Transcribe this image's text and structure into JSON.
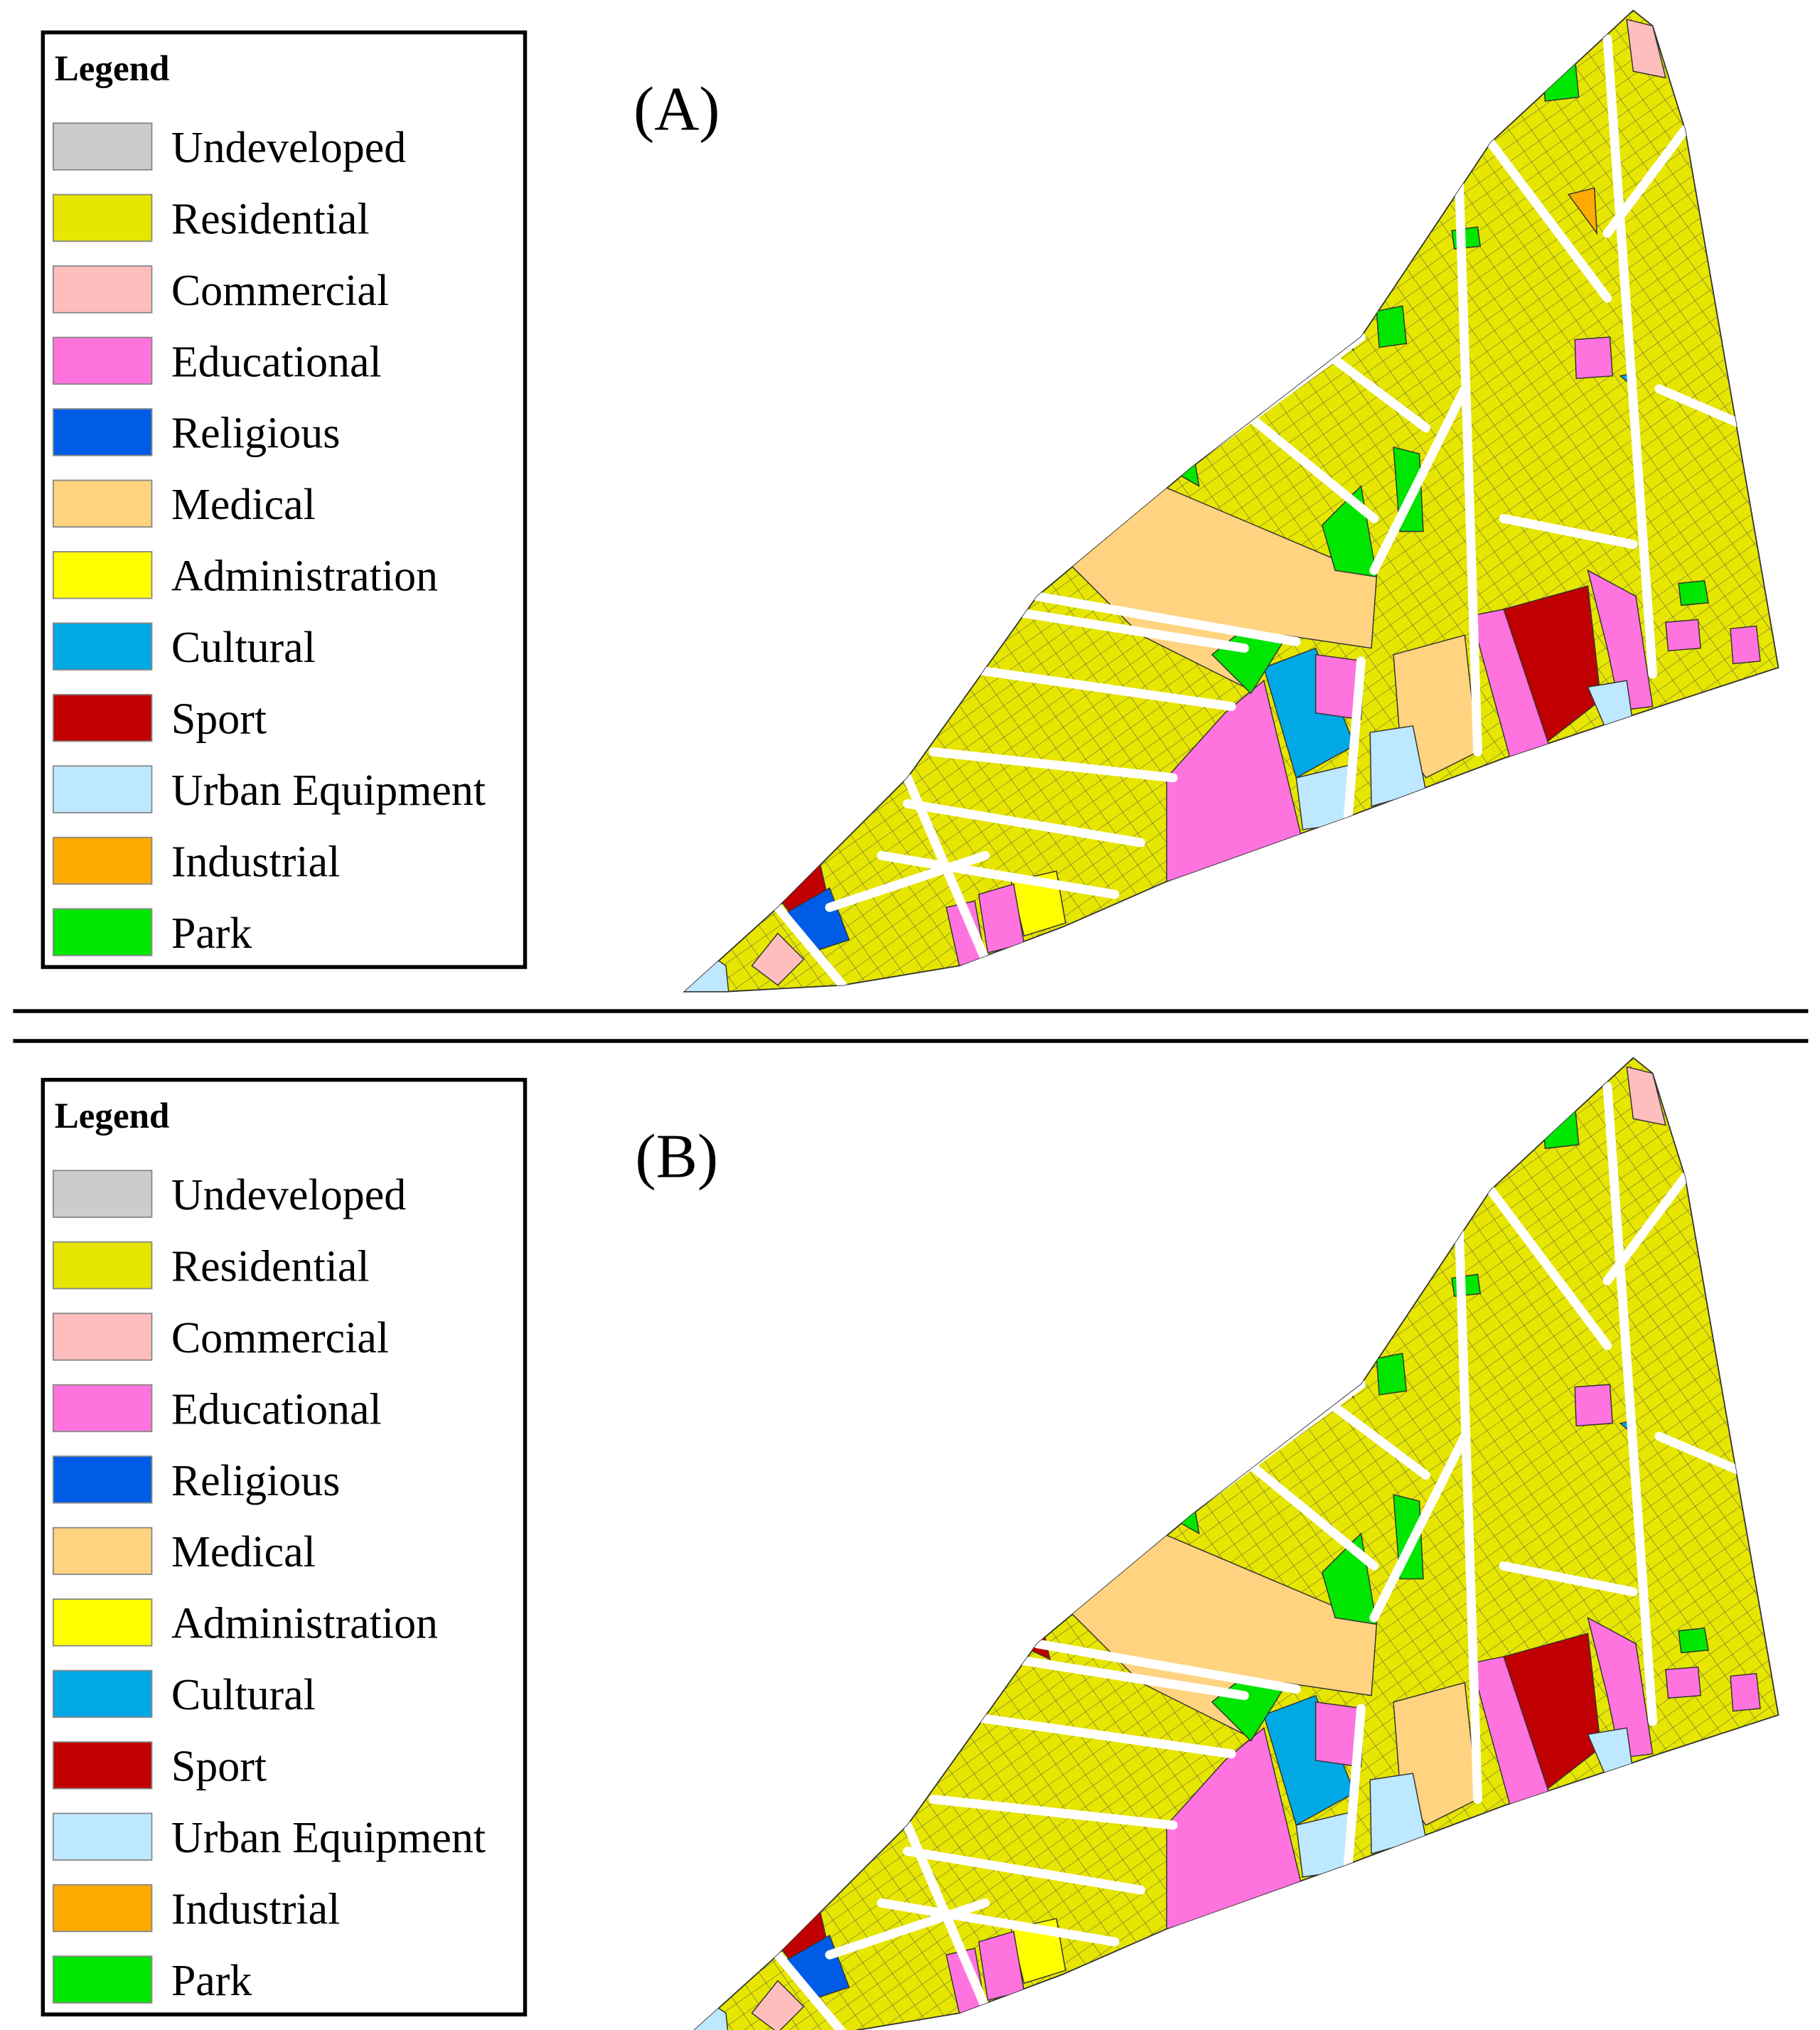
{
  "panels": [
    {
      "label": "(A)",
      "legend": {
        "title": "Legend",
        "items": [
          {
            "name": "Undeveloped",
            "color": "#cccccc"
          },
          {
            "name": "Residential",
            "color": "#e6e600"
          },
          {
            "name": "Commercial",
            "color": "#ffbebe"
          },
          {
            "name": "Educational",
            "color": "#ff73df"
          },
          {
            "name": "Religious",
            "color": "#005ce6"
          },
          {
            "name": "Medical",
            "color": "#ffd37f"
          },
          {
            "name": "Administration",
            "color": "#ffff00"
          },
          {
            "name": "Cultural",
            "color": "#00a9e6"
          },
          {
            "name": "Sport",
            "color": "#c00000"
          },
          {
            "name": "Urban Equipment",
            "color": "#bee8ff"
          },
          {
            "name": "Industrial",
            "color": "#ffaa00"
          },
          {
            "name": "Park",
            "color": "#00e600"
          }
        ]
      }
    },
    {
      "label": "(B)",
      "legend": {
        "title": "Legend",
        "items": [
          {
            "name": "Undeveloped",
            "color": "#cccccc"
          },
          {
            "name": "Residential",
            "color": "#e6e600"
          },
          {
            "name": "Commercial",
            "color": "#ffbebe"
          },
          {
            "name": "Educational",
            "color": "#ff73df"
          },
          {
            "name": "Religious",
            "color": "#005ce6"
          },
          {
            "name": "Medical",
            "color": "#ffd37f"
          },
          {
            "name": "Administration",
            "color": "#ffff00"
          },
          {
            "name": "Cultural",
            "color": "#00a9e6"
          },
          {
            "name": "Sport",
            "color": "#c00000"
          },
          {
            "name": "Urban Equipment",
            "color": "#bee8ff"
          },
          {
            "name": "Industrial",
            "color": "#ffaa00"
          },
          {
            "name": "Park",
            "color": "#00e600"
          }
        ]
      }
    }
  ]
}
